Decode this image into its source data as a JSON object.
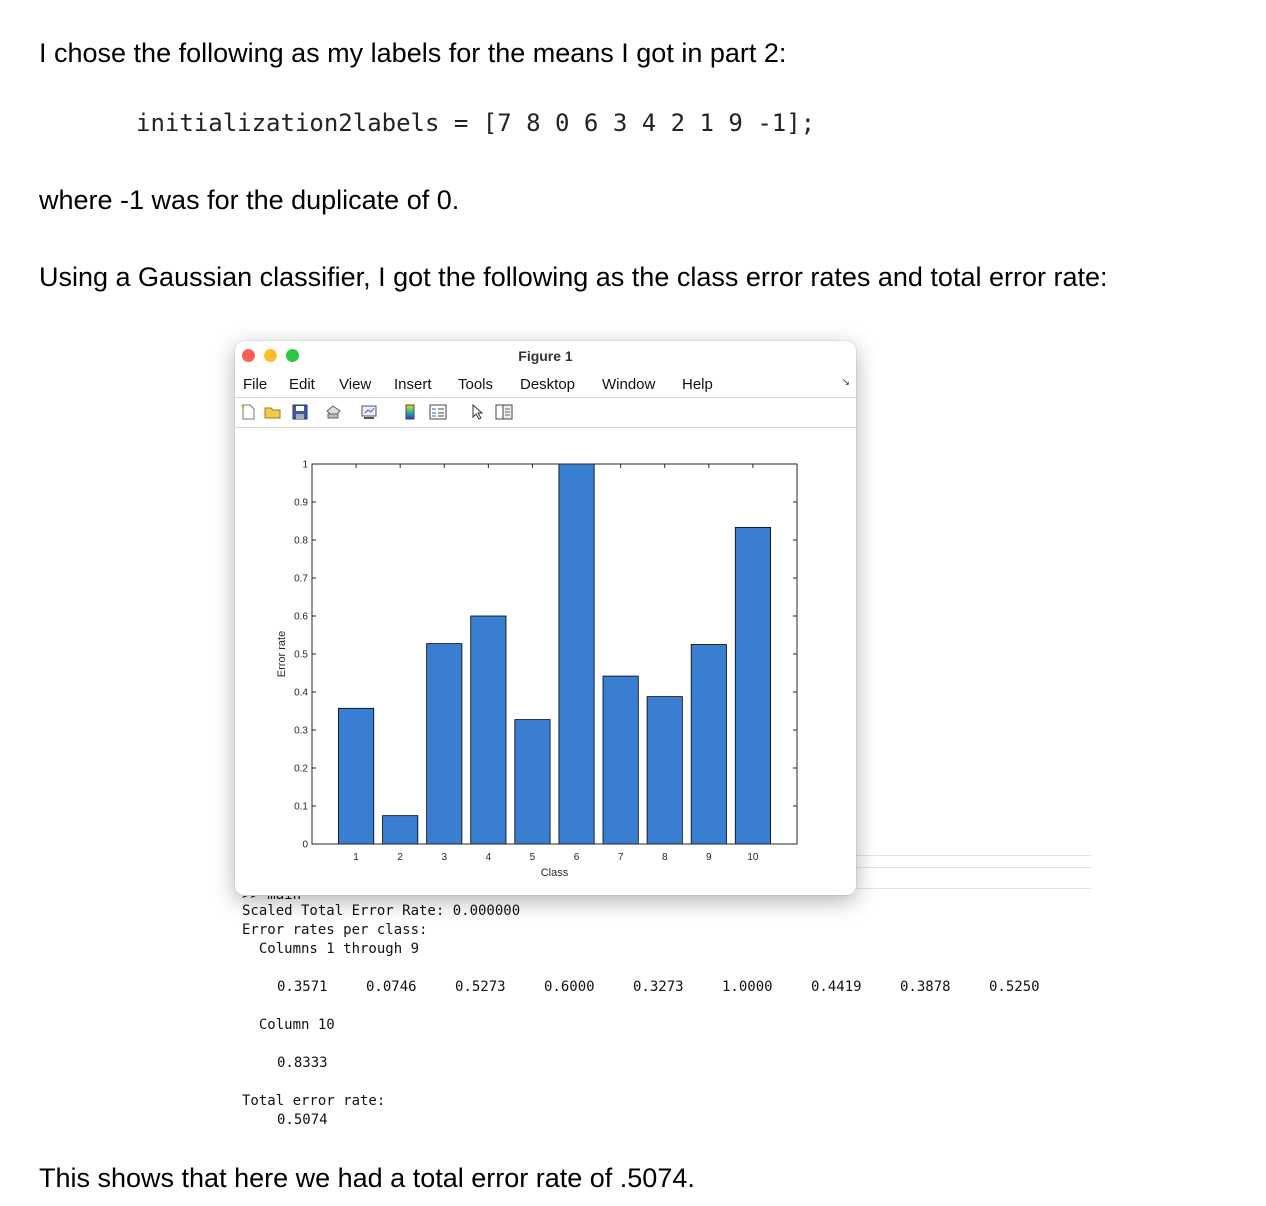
{
  "doc": {
    "para1": "I chose the following as my labels for the means I got in part 2:",
    "code_line": "initialization2labels = [7 8 0 6 3 4 2 1 9 -1];",
    "para2": "where -1 was for the duplicate of 0.",
    "para3": "Using a Gaussian classifier, I got the following as the class error rates and total error rate:",
    "para4": "This shows that here we had a total error rate of .5074."
  },
  "figure_window": {
    "title": "Figure 1",
    "menu": [
      "File",
      "Edit",
      "View",
      "Insert",
      "Tools",
      "Desktop",
      "Window",
      "Help"
    ],
    "toolbar_icons": [
      "new-file-icon",
      "open-folder-icon",
      "save-icon",
      "print-icon",
      "link-plot-icon",
      "colorbar-icon",
      "legend-icon",
      "pointer-icon",
      "property-editor-icon"
    ]
  },
  "chart_data": {
    "type": "bar",
    "categories": [
      "1",
      "2",
      "3",
      "4",
      "5",
      "6",
      "7",
      "8",
      "9",
      "10"
    ],
    "values": [
      0.3571,
      0.0746,
      0.5273,
      0.6,
      0.3273,
      1.0,
      0.4419,
      0.3878,
      0.525,
      0.8333
    ],
    "xlabel": "Class",
    "ylabel": "Error rate",
    "ylim": [
      0,
      1
    ],
    "yticks": [
      "0",
      "0.1",
      "0.2",
      "0.3",
      "0.4",
      "0.5",
      "0.6",
      "0.7",
      "0.8",
      "0.9",
      "1"
    ],
    "bar_color": "#3a7ed1",
    "grid": false
  },
  "console": {
    "partial_line": ">> main",
    "line1": "Scaled Total Error Rate: 0.000000",
    "line2": "Error rates per class:",
    "line3": "  Columns 1 through 9",
    "row1": [
      "0.3571",
      "0.0746",
      "0.5273",
      "0.6000",
      "0.3273",
      "1.0000",
      "0.4419",
      "0.3878",
      "0.5250"
    ],
    "line4": "  Column 10",
    "row2": "0.8333",
    "line5": "Total error rate:",
    "line6": "0.5074"
  }
}
